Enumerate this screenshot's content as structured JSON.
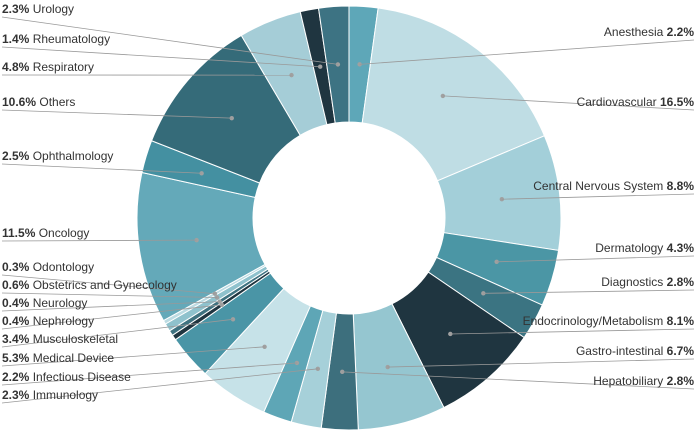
{
  "chart_data": {
    "type": "pie",
    "variant": "donut",
    "legend": "labels with leader lines on both sides",
    "slices": [
      {
        "label": "Anesthesia",
        "value": 2.2,
        "pct": "2.2%",
        "color": "#5ea7b8",
        "side": "right"
      },
      {
        "label": "Cardiovascular",
        "value": 16.5,
        "pct": "16.5%",
        "color": "#bfdde4",
        "side": "right"
      },
      {
        "label": "Central Nervous System",
        "value": 8.8,
        "pct": "8.8%",
        "color": "#a3cfd9",
        "side": "right"
      },
      {
        "label": "Dermatology",
        "value": 4.3,
        "pct": "4.3%",
        "color": "#4b96a5",
        "side": "right"
      },
      {
        "label": "Diagnostics",
        "value": 2.8,
        "pct": "2.8%",
        "color": "#3b7482",
        "side": "right"
      },
      {
        "label": "Endocrinology/Metabolism",
        "value": 8.1,
        "pct": "8.1%",
        "color": "#1f3540",
        "side": "right"
      },
      {
        "label": "Gastro-intestinal",
        "value": 6.7,
        "pct": "6.7%",
        "color": "#95c6d0",
        "side": "right"
      },
      {
        "label": "Hepatobiliary",
        "value": 2.8,
        "pct": "2.8%",
        "color": "#3d6f7d",
        "side": "right"
      },
      {
        "label": "Immunology",
        "value": 2.3,
        "pct": "2.3%",
        "color": "#a6d0d9",
        "side": "left"
      },
      {
        "label": "Infectious Disease",
        "value": 2.2,
        "pct": "2.2%",
        "color": "#5ea6b6",
        "side": "left"
      },
      {
        "label": "Medical Device",
        "value": 5.3,
        "pct": "5.3%",
        "color": "#c6e2e8",
        "side": "left"
      },
      {
        "label": "Musculoskeletal",
        "value": 3.4,
        "pct": "3.4%",
        "color": "#4a95a6",
        "side": "left"
      },
      {
        "label": "Nephrology",
        "value": 0.4,
        "pct": "0.4%",
        "color": "#1f3540",
        "side": "left"
      },
      {
        "label": "Neurology",
        "value": 0.4,
        "pct": "0.4%",
        "color": "#3e7280",
        "side": "left"
      },
      {
        "label": "Obstetrics and Gynecology",
        "value": 0.6,
        "pct": "0.6%",
        "color": "#8fc2cd",
        "side": "left"
      },
      {
        "label": "Odontology",
        "value": 0.3,
        "pct": "0.3%",
        "color": "#bcdbe2",
        "side": "left"
      },
      {
        "label": "Oncology",
        "value": 11.5,
        "pct": "11.5%",
        "color": "#64a9b9",
        "side": "left"
      },
      {
        "label": "Ophthalmology",
        "value": 2.5,
        "pct": "2.5%",
        "color": "#4490a1",
        "side": "left"
      },
      {
        "label": "Others",
        "value": 10.6,
        "pct": "10.6%",
        "color": "#356b79",
        "side": "left"
      },
      {
        "label": "Respiratory",
        "value": 4.8,
        "pct": "4.8%",
        "color": "#a5cdd7",
        "side": "left"
      },
      {
        "label": "Rheumatology",
        "value": 1.4,
        "pct": "1.4%",
        "color": "#1f3540",
        "side": "left"
      },
      {
        "label": "Urology",
        "value": 2.3,
        "pct": "2.3%",
        "color": "#3d7383",
        "side": "left"
      }
    ],
    "leader_line_color": "#999999",
    "dot_color": "#a0a0a0"
  }
}
